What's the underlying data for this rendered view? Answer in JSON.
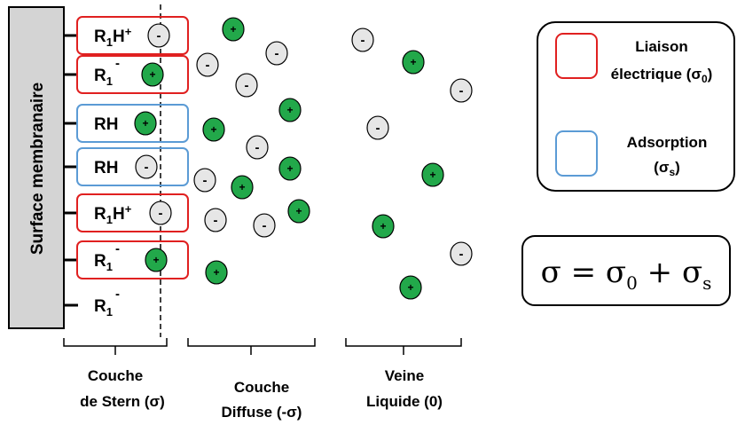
{
  "membrane_label": "Surface membranaire",
  "sites": [
    {
      "label": "R",
      "sub": "1",
      "extra": "H",
      "sup": "+",
      "box": "red",
      "ion": "-"
    },
    {
      "label": "R",
      "sub": "1",
      "extra": "",
      "sup": "-",
      "box": "red",
      "ion": "+"
    },
    {
      "label": "RH",
      "sub": "",
      "extra": "",
      "sup": "",
      "box": "blue",
      "ion": "+"
    },
    {
      "label": "RH",
      "sub": "",
      "extra": "",
      "sup": "",
      "box": "blue",
      "ion": "-"
    },
    {
      "label": "R",
      "sub": "1",
      "extra": "H",
      "sup": "+",
      "box": "red",
      "ion": "-"
    },
    {
      "label": "R",
      "sub": "1",
      "extra": "",
      "sup": "-",
      "box": "red",
      "ion": "+"
    },
    {
      "label": "R",
      "sub": "1",
      "extra": "",
      "sup": "-",
      "box": "none",
      "ion": ""
    }
  ],
  "diffuse_ions": [
    "+",
    "-",
    "-",
    "-",
    "+",
    "+",
    "-",
    "+",
    "-",
    "+",
    "+",
    "-",
    "-",
    "+",
    "+",
    "+",
    "-",
    "+"
  ],
  "bulk_ions": [
    "-",
    "+",
    "-",
    "-",
    "+",
    "+",
    "-",
    "+"
  ],
  "regions": {
    "stern": {
      "line1": "Couche",
      "line2": "de Stern (σ)"
    },
    "diffuse": {
      "line1": "Couche",
      "line2": "Diffuse (-σ)"
    },
    "bulk": {
      "line1": "Veine",
      "line2": "Liquide (0)"
    }
  },
  "legend": {
    "electric": {
      "line1": "Liaison",
      "line2_text": "électrique (σ",
      "line2_sub": "0",
      "line2_end": ")"
    },
    "adsorption": {
      "line1": "Adsorption",
      "line2_text": "(σ",
      "line2_sub": "s",
      "line2_end": ")"
    },
    "equation": {
      "lhs": "σ = σ",
      "sub0": "0",
      "mid": " + σ",
      "subs": "s"
    }
  },
  "colors": {
    "red_box": "#e02020",
    "blue_box": "#5b9bd5",
    "plus_ion": "#22a84a",
    "minus_ion": "#e6e6e6",
    "membrane": "#d4d4d4"
  }
}
